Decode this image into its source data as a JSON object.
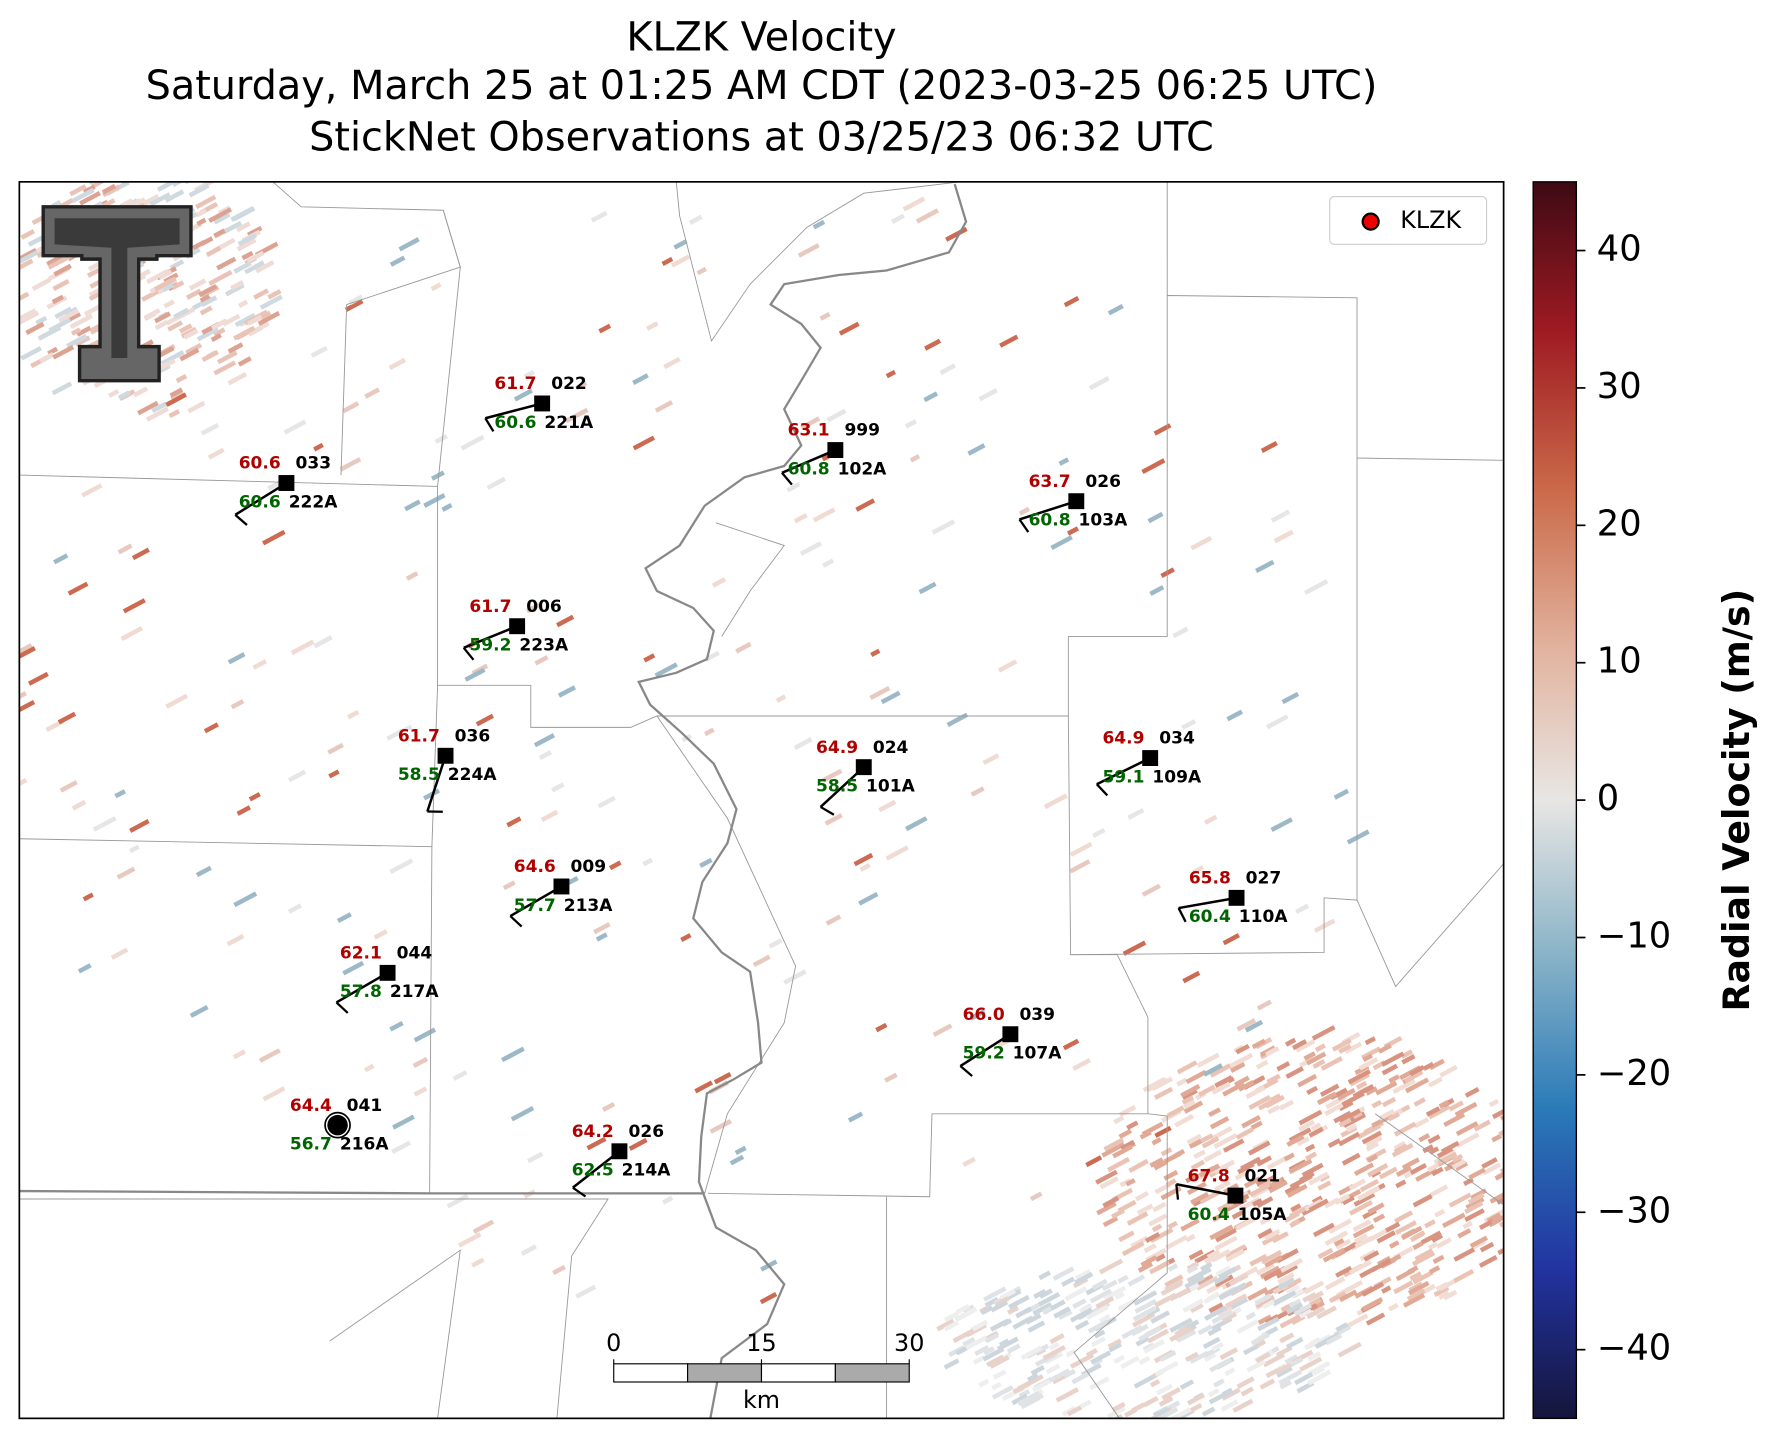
{
  "header": {
    "title": "KLZK Velocity",
    "subtitle": "Saturday, March 25 at 01:25 AM CDT (2023-03-25 06:25 UTC)",
    "subtitle2": "StickNet Observations at 03/25/23 06:32 UTC"
  },
  "legend": {
    "label": "KLZK"
  },
  "colorbar": {
    "label": "Radial Velocity (m/s)",
    "lim": [
      -45,
      45
    ],
    "ticks": [
      40,
      30,
      20,
      10,
      0,
      {
        "value": -10,
        "label": "−10"
      },
      {
        "value": -20,
        "label": "−20"
      },
      {
        "value": -30,
        "label": "−30"
      },
      {
        "value": -40,
        "label": "−40"
      }
    ]
  },
  "scalebar": {
    "ticks": [
      0,
      15,
      30
    ],
    "unit": "km"
  },
  "stations": [
    {
      "temp": 61.7,
      "id": "022",
      "dewpoint": 60.6,
      "name": "221A"
    },
    {
      "temp": 60.6,
      "id": "033",
      "dewpoint": 60.6,
      "name": "222A"
    },
    {
      "temp": 63.1,
      "id": "999",
      "dewpoint": 60.8,
      "name": "102A"
    },
    {
      "temp": 63.7,
      "id": "026",
      "dewpoint": 60.8,
      "name": "103A"
    },
    {
      "temp": 61.7,
      "id": "006",
      "dewpoint": 59.2,
      "name": "223A"
    },
    {
      "temp": 61.7,
      "id": "036",
      "dewpoint": 58.5,
      "name": "224A"
    },
    {
      "temp": 64.9,
      "id": "024",
      "dewpoint": 58.5,
      "name": "101A"
    },
    {
      "temp": 64.9,
      "id": "034",
      "dewpoint": 59.1,
      "name": "109A"
    },
    {
      "temp": 64.6,
      "id": "009",
      "dewpoint": 57.7,
      "name": "213A"
    },
    {
      "temp": 65.8,
      "id": "027",
      "dewpoint": 60.4,
      "name": "110A"
    },
    {
      "temp": 62.1,
      "id": "044",
      "dewpoint": 57.8,
      "name": "217A"
    },
    {
      "temp": 66.0,
      "id": "039",
      "dewpoint": 59.2,
      "name": "107A"
    },
    {
      "temp": 64.4,
      "id": "041",
      "dewpoint": 56.7,
      "name": "216A"
    },
    {
      "temp": 64.2,
      "id": "026",
      "dewpoint": 62.5,
      "name": "214A"
    },
    {
      "temp": 67.8,
      "id": "021",
      "dewpoint": 60.4,
      "name": "105A"
    }
  ]
}
